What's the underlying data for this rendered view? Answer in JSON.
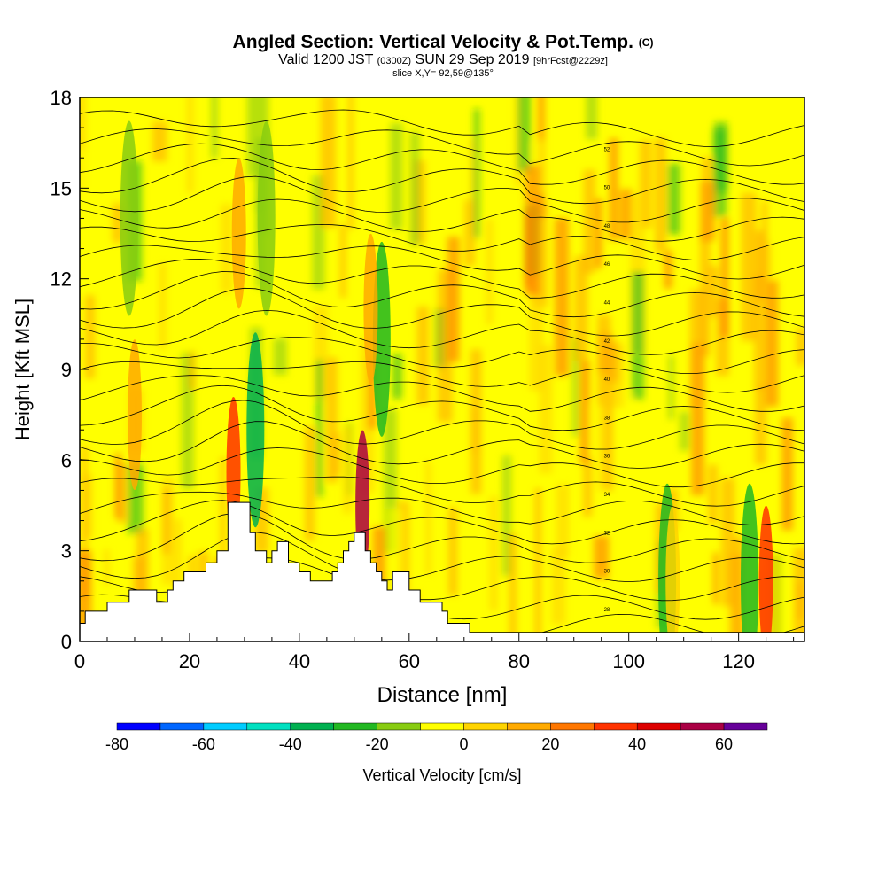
{
  "header": {
    "title": "Angled Section: Vertical Velocity & Pot.Temp.",
    "title_suffix": "(C)",
    "valid_prefix": "Valid 1200 JST",
    "valid_utc": "(0300Z)",
    "valid_date": "SUN 29 Sep 2019",
    "forecast": "[9hrFcst@2229z]",
    "slice": "slice X,Y= 92,59@135°"
  },
  "chart_data": {
    "type": "heatmap",
    "xlabel": "Distance [nm]",
    "ylabel": "Height [Kft MSL]",
    "xlim": [
      0,
      132
    ],
    "ylim": [
      0,
      18
    ],
    "x_ticks": [
      0,
      20,
      40,
      60,
      80,
      100,
      120
    ],
    "y_ticks": [
      0,
      3,
      6,
      9,
      12,
      15,
      18
    ],
    "colorbar": {
      "label": "Vertical Velocity [cm/s]",
      "bounds": [
        -80,
        -70,
        -60,
        -50,
        -40,
        -30,
        -20,
        -10,
        0,
        10,
        20,
        30,
        40,
        50,
        60,
        70
      ],
      "tick_labels": [
        "-80",
        "-60",
        "-40",
        "-20",
        "0",
        "20",
        "40",
        "60"
      ],
      "colors": [
        "#0000ff",
        "#0066ff",
        "#00ccff",
        "#00e0c0",
        "#00b050",
        "#22b822",
        "#88cc11",
        "#ffff00",
        "#ffd400",
        "#ffaa00",
        "#ff7700",
        "#ff3300",
        "#dd0000",
        "#aa0044",
        "#660099"
      ]
    },
    "terrain_kft": [
      [
        0,
        0.6
      ],
      [
        1,
        0.6
      ],
      [
        1,
        1.0
      ],
      [
        5,
        1.0
      ],
      [
        5,
        1.3
      ],
      [
        9,
        1.3
      ],
      [
        9,
        1.7
      ],
      [
        14,
        1.7
      ],
      [
        14,
        1.3
      ],
      [
        16,
        1.3
      ],
      [
        16,
        1.7
      ],
      [
        17,
        1.7
      ],
      [
        17,
        2.0
      ],
      [
        19,
        2.0
      ],
      [
        19,
        2.3
      ],
      [
        23,
        2.3
      ],
      [
        23,
        2.6
      ],
      [
        25,
        2.6
      ],
      [
        25,
        3.0
      ],
      [
        27,
        3.0
      ],
      [
        27,
        4.6
      ],
      [
        31,
        4.6
      ],
      [
        31,
        3.6
      ],
      [
        32,
        3.6
      ],
      [
        32,
        3.0
      ],
      [
        34,
        3.0
      ],
      [
        34,
        2.6
      ],
      [
        35,
        2.6
      ],
      [
        35,
        3.0
      ],
      [
        36,
        3.0
      ],
      [
        36,
        3.3
      ],
      [
        38,
        3.3
      ],
      [
        38,
        2.6
      ],
      [
        40,
        2.6
      ],
      [
        40,
        2.3
      ],
      [
        42,
        2.3
      ],
      [
        42,
        2.0
      ],
      [
        46,
        2.0
      ],
      [
        46,
        2.3
      ],
      [
        47,
        2.3
      ],
      [
        47,
        2.6
      ],
      [
        48,
        2.6
      ],
      [
        48,
        3.0
      ],
      [
        49,
        3.0
      ],
      [
        49,
        3.3
      ],
      [
        50,
        3.3
      ],
      [
        50,
        3.6
      ],
      [
        52,
        3.6
      ],
      [
        52,
        3.0
      ],
      [
        53,
        3.0
      ],
      [
        53,
        2.6
      ],
      [
        54,
        2.6
      ],
      [
        54,
        2.3
      ],
      [
        55,
        2.3
      ],
      [
        55,
        2.0
      ],
      [
        56,
        2.0
      ],
      [
        56,
        1.7
      ],
      [
        57,
        1.7
      ],
      [
        57,
        2.3
      ],
      [
        60,
        2.3
      ],
      [
        60,
        1.7
      ],
      [
        62,
        1.7
      ],
      [
        62,
        1.3
      ],
      [
        66,
        1.3
      ],
      [
        66,
        1.0
      ],
      [
        67,
        1.0
      ],
      [
        67,
        0.6
      ],
      [
        71,
        0.6
      ],
      [
        71,
        0.3
      ],
      [
        132,
        0.3
      ]
    ],
    "updraft_cores": [
      {
        "x": 29,
        "y": 13.5,
        "w": 14
      },
      {
        "x": 28,
        "y": 5.6,
        "w": 30
      },
      {
        "x": 10,
        "y": 7.5,
        "w": 15
      },
      {
        "x": 51.5,
        "y": 4.5,
        "w": 50
      },
      {
        "x": 53,
        "y": 11,
        "w": 15
      },
      {
        "x": 108,
        "y": 2,
        "w": 5
      },
      {
        "x": 125,
        "y": 2,
        "w": 38
      }
    ],
    "downdraft_bands": [
      {
        "x": 9,
        "y": 14,
        "w": -20
      },
      {
        "x": 34,
        "y": 14,
        "w": -20
      },
      {
        "x": 32,
        "y": 7,
        "w": -40
      },
      {
        "x": 55,
        "y": 10,
        "w": -30
      },
      {
        "x": 122,
        "y": 2,
        "w": -30
      },
      {
        "x": 107,
        "y": 2,
        "w": -30
      }
    ],
    "isentropes": {
      "values_c": [
        26,
        27,
        28,
        29,
        30,
        31,
        32,
        33,
        34,
        35,
        36,
        37,
        38,
        39,
        40,
        41,
        42,
        43,
        44,
        45,
        46,
        47,
        48,
        49,
        50,
        51,
        52
      ],
      "labels": [
        "28",
        "30",
        "32",
        "34",
        "36",
        "38",
        "40",
        "42",
        "44",
        "46",
        "48",
        "50",
        "52"
      ]
    }
  }
}
